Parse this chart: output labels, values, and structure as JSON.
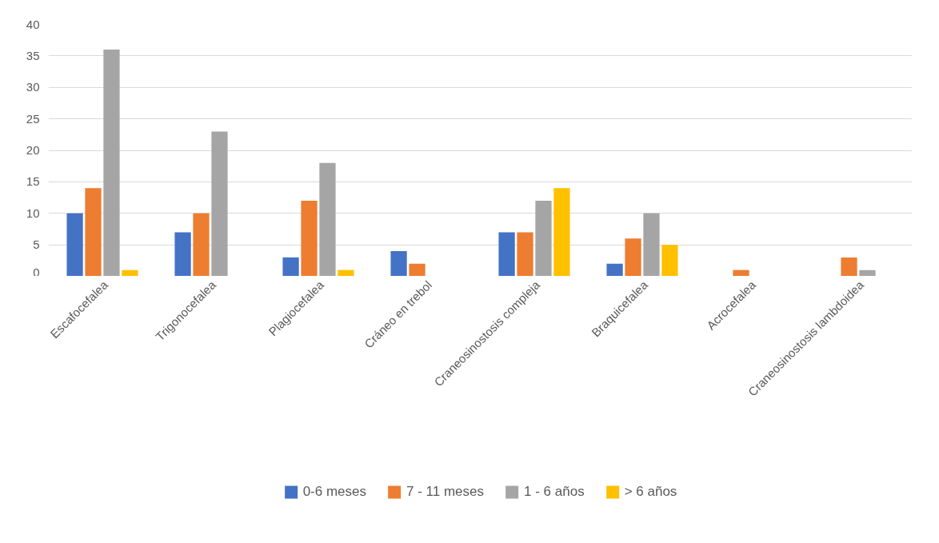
{
  "chart_data": {
    "type": "bar",
    "categories": [
      "Escafocefalea",
      "Trigonocefalea",
      "Plagiocefalea",
      "Cráneo en trebol",
      "Craneosinostosis compleja",
      "Braquicefalea",
      "Acrocefalea",
      "Craneosinostosis lambdoidea"
    ],
    "series": [
      {
        "name": "0-6 meses",
        "color": "#4472c4",
        "values": [
          10,
          7,
          3,
          4,
          7,
          2,
          0,
          0
        ]
      },
      {
        "name": "7 - 11 meses",
        "color": "#ed7d31",
        "values": [
          14,
          10,
          12,
          2,
          7,
          6,
          1,
          3
        ]
      },
      {
        "name": "1 - 6 años",
        "color": "#a5a5a5",
        "values": [
          36,
          23,
          18,
          0,
          12,
          10,
          0,
          1
        ]
      },
      {
        "name": "> 6 años",
        "color": "#ffc000",
        "values": [
          1,
          0,
          1,
          0,
          14,
          5,
          0,
          0
        ]
      }
    ],
    "ylim": [
      0,
      40
    ],
    "yticks": [
      0,
      5,
      10,
      15,
      20,
      25,
      30,
      35,
      40
    ],
    "grid": "y",
    "legend": "bottom"
  }
}
